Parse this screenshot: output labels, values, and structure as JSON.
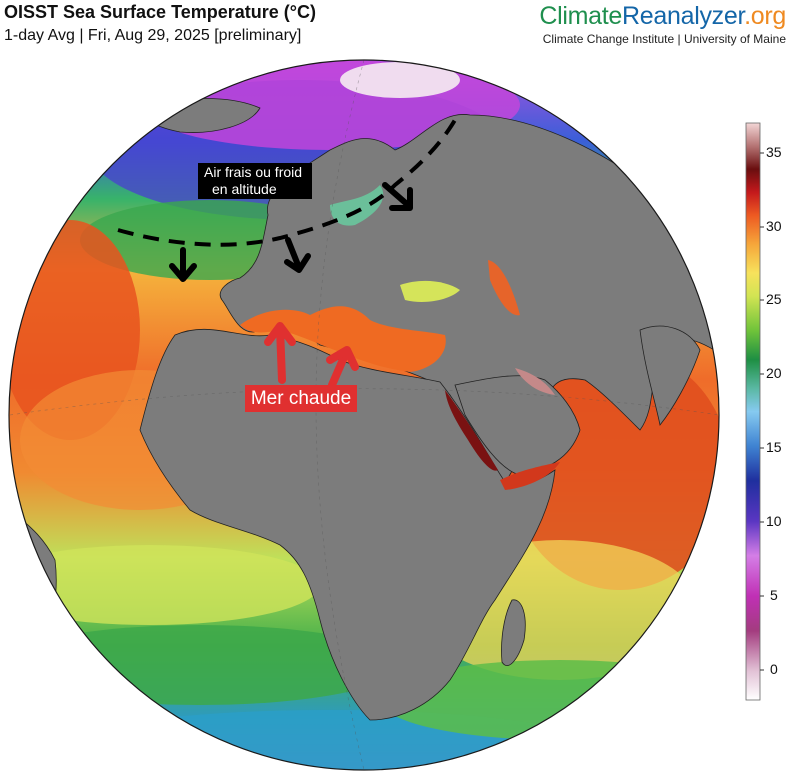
{
  "header": {
    "title": "OISST Sea Surface Temperature (°C)",
    "subtitle": "1-day Avg | Fri, Aug 29, 2025 [preliminary]"
  },
  "brand": {
    "name_part1": "Climate",
    "name_part2": "Reanalyzer",
    "name_part3": ".org",
    "org": "Climate Change Institute | University of Maine"
  },
  "colorbar": {
    "ticks": [
      "35",
      "30",
      "25",
      "20",
      "15",
      "10",
      "5",
      "0"
    ],
    "tick_values": [
      35,
      30,
      25,
      20,
      15,
      10,
      5,
      0
    ],
    "range": [
      -2,
      37
    ],
    "colors": [
      "#f7f0f5",
      "#d9a9c7",
      "#8a1f66",
      "#c52fb8",
      "#d87ce6",
      "#6a3fd0",
      "#1f2f9e",
      "#3a7ed1",
      "#7fc6ef",
      "#4fb8a8",
      "#2a9a4a",
      "#6fc33a",
      "#c9e04f",
      "#f7e35a",
      "#f6a63a",
      "#ee5a22",
      "#c4191c",
      "#6e0f10",
      "#b87373",
      "#f1d3d3"
    ]
  },
  "annotations": {
    "cold_air_line1": "Air frais ou froid",
    "cold_air_line2": "en altitude",
    "warm_sea": "Mer chaude"
  }
}
